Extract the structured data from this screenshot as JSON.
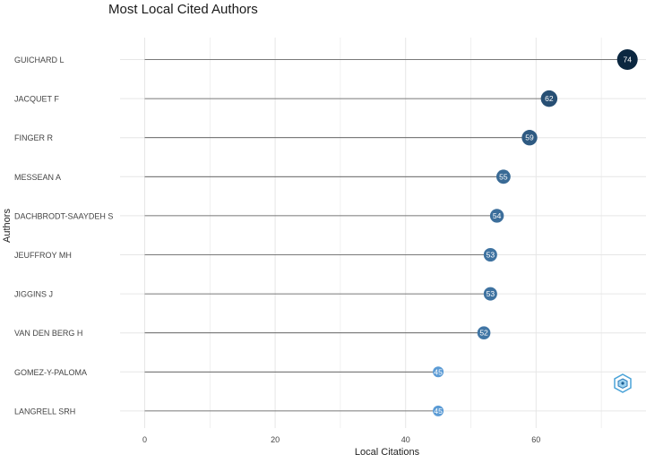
{
  "chart_data": {
    "type": "lollipop",
    "title": "Most Local Cited Authors",
    "xlabel": "Local Citations",
    "ylabel": "Authors",
    "xlim": [
      0,
      76
    ],
    "xticks": [
      0,
      20,
      40,
      60
    ],
    "grid": true,
    "categories": [
      "GUICHARD L",
      "JACQUET F",
      "FINGER R",
      "MESSEAN A",
      "DACHBRODT-SAAYDEH S",
      "JEUFFROY MH",
      "JIGGINS J",
      "VAN DEN BERG H",
      "GOMEZ-Y-PALOMA",
      "LANGRELL SRH"
    ],
    "values": [
      74,
      62,
      59,
      55,
      54,
      53,
      53,
      52,
      45,
      45
    ],
    "colors": {
      "low": "#5b9bd5",
      "high": "#0b2740",
      "stem": "#555555",
      "grid": "#e6e6e6"
    }
  },
  "logo": {
    "icon": "bibliometrix-logo-icon"
  }
}
